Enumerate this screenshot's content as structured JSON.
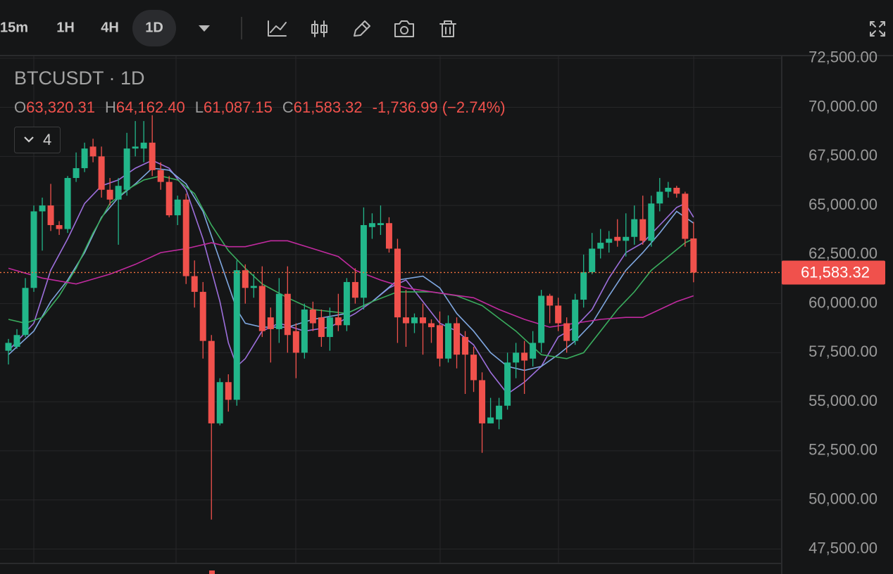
{
  "toolbar": {
    "intervals": [
      "15m",
      "1H",
      "4H",
      "1D"
    ],
    "active": "1D"
  },
  "chart_data": {
    "type": "candlestick",
    "title": "BTCUSDT · 1D",
    "ohlc_legend": {
      "open_label": "O",
      "open": "63,320.31",
      "high_label": "H",
      "high": "64,162.40",
      "low_label": "L",
      "low": "61,087.15",
      "close_label": "C",
      "close": "61,583.32",
      "change": "-1,736.99 (−2.74%)"
    },
    "indicators_count": 4,
    "up_color": "#22b68a",
    "down_color": "#f0514c",
    "open": [
      57600,
      57800,
      58400,
      60800,
      64700,
      65000,
      64000,
      63800,
      66400,
      66900,
      68000,
      67500,
      65800,
      65300,
      65800,
      67900,
      67900,
      68200,
      66800,
      66200,
      64500,
      65300,
      61400,
      60600,
      58100,
      53900,
      56000,
      55100,
      61700,
      60800,
      60900,
      59300,
      58700,
      60500,
      58600,
      57500,
      59700,
      59300,
      58300,
      59300,
      58900,
      61100,
      60300,
      63900,
      64000,
      64100,
      62800,
      59300,
      59000,
      59300,
      59000,
      58900,
      57200,
      59000,
      58300,
      57400,
      56100,
      53900,
      54100,
      54800,
      57000,
      57500,
      57200,
      58000,
      60400,
      59900,
      59000,
      58100,
      60200,
      61600,
      62800,
      63100,
      63400,
      63200,
      63400,
      64300,
      63200,
      65100,
      65700,
      65900,
      65600,
      63320.31
    ],
    "high": [
      58200,
      58700,
      61300,
      65000,
      65400,
      66100,
      64200,
      66500,
      67700,
      68200,
      68400,
      68000,
      66400,
      66400,
      68700,
      69300,
      69300,
      69600,
      67200,
      66500,
      65500,
      65600,
      62200,
      61100,
      58400,
      56200,
      56400,
      62200,
      62000,
      61500,
      61900,
      59800,
      61300,
      61900,
      59000,
      60000,
      60100,
      59700,
      59800,
      60500,
      61300,
      61800,
      64900,
      64600,
      65000,
      64400,
      63300,
      60700,
      59500,
      60000,
      59200,
      59600,
      59400,
      59300,
      58600,
      57800,
      56500,
      55200,
      55200,
      57500,
      58000,
      58100,
      58600,
      60700,
      60500,
      60300,
      59300,
      60500,
      62500,
      63600,
      63800,
      63700,
      64300,
      64600,
      65000,
      65500,
      65500,
      66400,
      66200,
      66000,
      65700,
      64162.4
    ],
    "low": [
      56900,
      57700,
      58300,
      60600,
      62700,
      63700,
      63500,
      63600,
      66200,
      66700,
      67200,
      65400,
      65000,
      63000,
      65500,
      67500,
      67200,
      66500,
      65800,
      64400,
      64000,
      61000,
      59800,
      57200,
      49000,
      53800,
      54500,
      54800,
      60000,
      60300,
      58300,
      57000,
      58000,
      57500,
      56200,
      57200,
      58600,
      57800,
      57600,
      58600,
      58600,
      60000,
      59700,
      63300,
      63500,
      62600,
      58000,
      57800,
      58500,
      57400,
      58000,
      56800,
      57000,
      56700,
      55400,
      55500,
      52400,
      53900,
      53600,
      54600,
      56200,
      55400,
      56800,
      57500,
      59000,
      58600,
      57500,
      57900,
      59800,
      61500,
      62300,
      62600,
      62900,
      62400,
      63000,
      63000,
      62900,
      64700,
      65400,
      65400,
      62900,
      61087.15
    ],
    "close": [
      58000,
      58400,
      60800,
      64700,
      65000,
      64000,
      63800,
      66400,
      66900,
      67900,
      67500,
      65800,
      65300,
      66000,
      67900,
      68000,
      68200,
      66800,
      66200,
      64500,
      65300,
      61400,
      60600,
      58100,
      53900,
      56000,
      55100,
      61700,
      60800,
      60900,
      58600,
      58700,
      60500,
      58400,
      57500,
      59700,
      59000,
      58300,
      59300,
      58900,
      61100,
      60300,
      64000,
      64100,
      64100,
      62800,
      59300,
      59000,
      59300,
      59000,
      58800,
      57200,
      59000,
      57400,
      57400,
      56100,
      53900,
      54200,
      54800,
      57000,
      57500,
      57100,
      58000,
      60400,
      59900,
      59000,
      58100,
      60200,
      61600,
      62800,
      63100,
      63300,
      63200,
      63400,
      64300,
      63200,
      65100,
      65700,
      65900,
      65600,
      63300,
      61583.32
    ],
    "lines": [
      {
        "color": "#9d6fdc",
        "x": [
          0,
          3,
          5,
          7,
          9,
          11,
          13,
          15,
          17,
          19,
          21,
          23,
          25,
          26,
          27,
          28,
          30,
          32,
          35,
          38,
          41,
          43,
          45,
          47,
          49,
          51,
          53,
          55,
          57,
          59,
          61,
          63,
          65,
          67,
          69,
          71,
          73,
          75,
          77,
          79,
          80,
          81
        ],
        "values": [
          57600,
          59000,
          61700,
          63300,
          65100,
          66000,
          66300,
          66900,
          67300,
          66900,
          65800,
          63300,
          60100,
          58000,
          56800,
          57200,
          58600,
          59000,
          58600,
          58800,
          59500,
          60100,
          60800,
          61200,
          60100,
          59000,
          58600,
          57900,
          56500,
          55400,
          56000,
          56800,
          58300,
          58800,
          59700,
          61300,
          62600,
          63100,
          64000,
          64900,
          65100,
          64400
        ]
      },
      {
        "color": "#7fa7e0",
        "x": [
          0,
          3,
          5,
          7,
          9,
          11,
          13,
          15,
          17,
          19,
          21,
          23,
          25,
          27,
          28,
          30,
          33,
          36,
          40,
          43,
          46,
          49,
          51,
          53,
          55,
          57,
          59,
          61,
          63,
          65,
          67,
          69,
          71,
          73,
          75,
          77,
          79,
          81
        ],
        "values": [
          57400,
          58600,
          60100,
          61200,
          62600,
          64400,
          65400,
          66100,
          66900,
          66800,
          66100,
          64700,
          62200,
          59700,
          59000,
          58800,
          58800,
          59200,
          59500,
          60100,
          61200,
          61400,
          60800,
          59500,
          58600,
          57500,
          56800,
          56600,
          56800,
          57400,
          58100,
          59000,
          60400,
          61700,
          62600,
          63600,
          64700,
          64100
        ]
      },
      {
        "color": "#3aad5e",
        "x": [
          0,
          2,
          4,
          6,
          8,
          10,
          12,
          14,
          16,
          18,
          20,
          22,
          24,
          26,
          28,
          30,
          33,
          36,
          40,
          43,
          46,
          50,
          53,
          56,
          60,
          63,
          66,
          68,
          70,
          72,
          74,
          76,
          78,
          80,
          81
        ],
        "values": [
          59200,
          59000,
          59300,
          60400,
          61800,
          63600,
          65100,
          65800,
          66300,
          66500,
          66300,
          65600,
          64000,
          62700,
          61800,
          61000,
          60300,
          59700,
          59500,
          60100,
          60600,
          60600,
          60400,
          59900,
          58600,
          57400,
          57200,
          57500,
          58600,
          59700,
          60600,
          61700,
          62400,
          63100,
          63300
        ]
      },
      {
        "color": "#c02a9f",
        "x": [
          0,
          4,
          8,
          12,
          15,
          18,
          21,
          24,
          26,
          28,
          31,
          33,
          36,
          39,
          41,
          44,
          47,
          50,
          55,
          58,
          61,
          64,
          67,
          70,
          73,
          75,
          77,
          79,
          81
        ],
        "values": [
          61800,
          61300,
          61000,
          61500,
          62000,
          62600,
          62800,
          63100,
          62900,
          62900,
          63200,
          63200,
          62800,
          62400,
          61700,
          61200,
          60800,
          60600,
          60300,
          59700,
          59200,
          58800,
          59000,
          59200,
          59300,
          59300,
          59700,
          60100,
          60400
        ]
      }
    ],
    "last_price": {
      "value": 61583.32,
      "label": "61,583.32"
    },
    "ylim": [
      46800,
      72600
    ],
    "yticks": [
      {
        "value": 47500,
        "label": "47,500.00"
      },
      {
        "value": 50000,
        "label": "50,000.00"
      },
      {
        "value": 52500,
        "label": "52,500.00"
      },
      {
        "value": 55000,
        "label": "55,000.00"
      },
      {
        "value": 57500,
        "label": "57,500.00"
      },
      {
        "value": 60000,
        "label": "60,000.00"
      },
      {
        "value": 62500,
        "label": "62,500.00"
      },
      {
        "value": 65000,
        "label": "65,000.00"
      },
      {
        "value": 67500,
        "label": "67,500.00"
      },
      {
        "value": 70000,
        "label": "70,000.00"
      },
      {
        "value": 72500,
        "label": "72,500.00"
      }
    ],
    "grid": true
  }
}
